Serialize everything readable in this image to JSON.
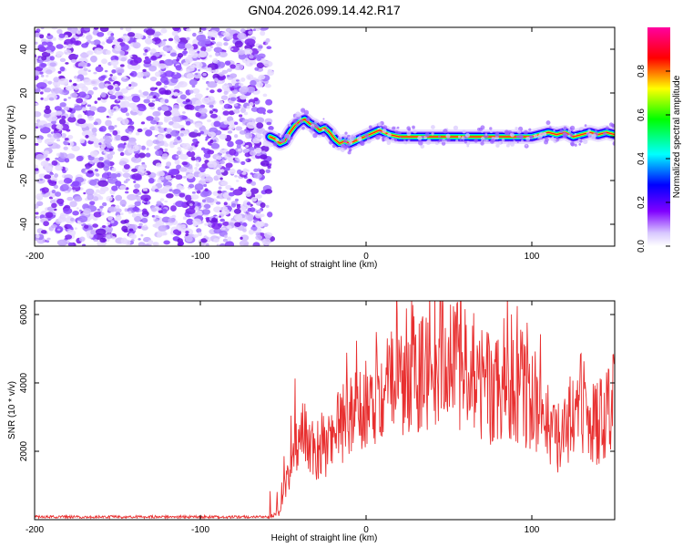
{
  "title": "GN04.2026.099.14.42.R17",
  "chart_data": [
    {
      "type": "heatmap",
      "xlabel": "Height of straight line (km)",
      "ylabel": "Frequency (Hz)",
      "xlim": [
        -200,
        150
      ],
      "ylim": [
        -50,
        50
      ],
      "xticks": [
        -200,
        -100,
        0,
        100
      ],
      "yticks": [
        -40,
        -20,
        0,
        20,
        40
      ],
      "noise_region_x": [
        -200,
        -58
      ],
      "trace": {
        "x": [
          -58,
          -55,
          -52,
          -49,
          -46,
          -43,
          -40,
          -37,
          -34,
          -31,
          -28,
          -25,
          -22,
          -19,
          -16,
          -13,
          -10,
          -7,
          -4,
          -1,
          2,
          5,
          8,
          11,
          14,
          20,
          40,
          60,
          80,
          100,
          105,
          110,
          115,
          120,
          125,
          130,
          135,
          140,
          145,
          150
        ],
        "y": [
          0,
          -1,
          -3,
          -2,
          2,
          5,
          7,
          8,
          6,
          5,
          3,
          4,
          2,
          -1,
          -3,
          -2,
          -3,
          -2,
          -1,
          0,
          1,
          2,
          3,
          2,
          1,
          0,
          0,
          0,
          0,
          0,
          1,
          2,
          1,
          2,
          0,
          1,
          2,
          1,
          2,
          1
        ]
      },
      "colorbar": {
        "label": "Normalized spectral amplitude",
        "ticks": [
          "0.0",
          "0.2",
          "0.4",
          "0.6",
          "0.8"
        ],
        "range": [
          0,
          1
        ]
      }
    },
    {
      "type": "line",
      "xlabel": "Height of straight line (km)",
      "ylabel": "SNR (10 * v/v)",
      "xlim": [
        -200,
        150
      ],
      "ylim": [
        0,
        6400
      ],
      "xticks": [
        -200,
        -100,
        0,
        100
      ],
      "yticks": [
        2000,
        4000,
        6000
      ],
      "series": [
        {
          "name": "SNR",
          "color": "#e83030",
          "envelope_x": [
            -200,
            -60,
            -52,
            -48,
            -45,
            -40,
            -35,
            -30,
            -25,
            -20,
            -15,
            -10,
            -5,
            0,
            5,
            10,
            15,
            20,
            25,
            30,
            35,
            40,
            45,
            50,
            55,
            60,
            65,
            70,
            75,
            80,
            85,
            90,
            95,
            100,
            105,
            110,
            115,
            120,
            125,
            130,
            135,
            140,
            145,
            150
          ],
          "envelope_y": [
            60,
            60,
            200,
            1100,
            2000,
            2600,
            2300,
            2100,
            2200,
            2400,
            2700,
            3000,
            3300,
            3600,
            3800,
            4000,
            4200,
            4300,
            4400,
            4600,
            4700,
            4800,
            4900,
            4900,
            4700,
            4300,
            4000,
            3900,
            3900,
            3800,
            3900,
            4000,
            3800,
            3600,
            3400,
            3000,
            2400,
            2600,
            3200,
            3600,
            3000,
            2800,
            3200,
            3600
          ]
        }
      ]
    }
  ]
}
